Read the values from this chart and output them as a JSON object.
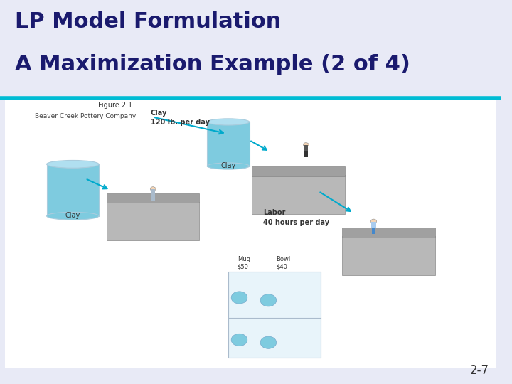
{
  "title_line1": "LP Model Formulation",
  "title_line2": "A Maximization Example (2 of 4)",
  "title_fontsize": 22,
  "title_color": "#1a1a6e",
  "background_color": "#e8eaf6",
  "divider_color": "#00bcd4",
  "divider_linewidth": 4,
  "page_number": "2-7",
  "page_number_fontsize": 12,
  "figure_caption": "Figure 2.1",
  "figure_subcaption": "Beaver Creek Pottery Company",
  "clay_label_top": "Clay\n120 lb. per day",
  "clay_label_mid": "Clay",
  "clay_label_left": "Clay",
  "labor_label": "Labor\n40 hours per day",
  "mug_label": "Mug\n$50",
  "bowl_label": "Bowl\n$40",
  "arrow_color": "#00aacc",
  "cylinder_color": "#7ecbdf",
  "cylinder_top_color": "#b0dff0",
  "table_top_color": "#a0a0a0",
  "table_body_color": "#b8b8b8",
  "person_skin": "#f5d5b5",
  "person_dark_body": "#555555",
  "person_blue_legs": "#4488cc",
  "person_blue_body": "#aaccee",
  "shelf_color": "#e8f4fa",
  "shelf_edge_color": "#aabbcc"
}
